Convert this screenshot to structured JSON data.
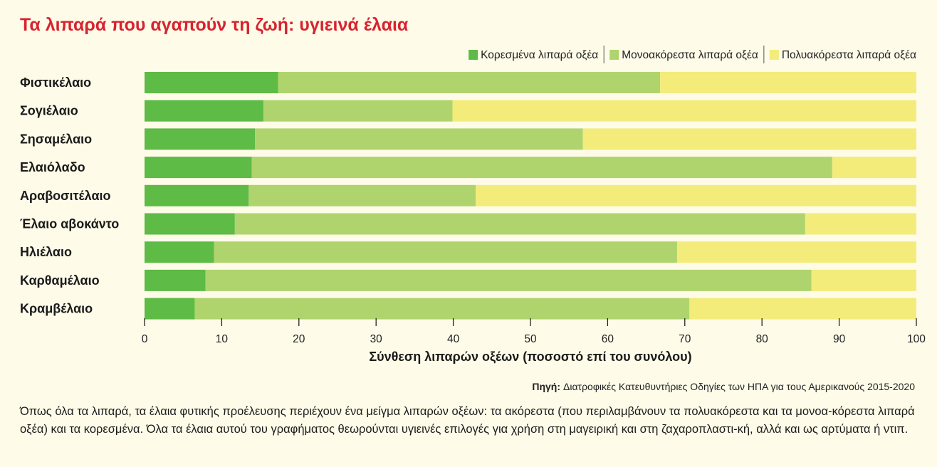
{
  "chart_data": {
    "type": "bar",
    "orientation": "horizontal",
    "stacked": true,
    "title": "Τα λιπαρά που αγαπούν τη ζωή: υγιεινά έλαια",
    "xlabel": "Σύνθεση λιπαρών οξέων (ποσοστό επί του συνόλου)",
    "ylabel": "",
    "xlim": [
      0,
      100
    ],
    "xticks": [
      0,
      10,
      20,
      30,
      40,
      50,
      60,
      70,
      80,
      90,
      100
    ],
    "grid": false,
    "legend_position": "top-right",
    "categories": [
      "Φιστικέλαιο",
      "Σογιέλαιο",
      "Σησαμέλαιο",
      "Ελαιόλαδο",
      "Αραβοσιτέλαιο",
      "Έλαιο αβοκάντο",
      "Ηλιέλαιο",
      "Καρθαμέλαιο",
      "Κραμβέλαιο"
    ],
    "series": [
      {
        "name": "Κορεσμένα λιπαρά οξέα",
        "color": "#5dbb46",
        "values": [
          17.3,
          15.4,
          14.3,
          13.9,
          13.5,
          11.7,
          9.0,
          7.9,
          6.5
        ]
      },
      {
        "name": "Μονοακόρεστα λιπαρά οξέα",
        "color": "#afd46d",
        "values": [
          49.5,
          24.5,
          42.5,
          75.2,
          29.4,
          73.9,
          60.0,
          78.5,
          64.1
        ]
      },
      {
        "name": "Πολυακόρεστα λιπαρά οξέα",
        "color": "#f3ec7a",
        "values": [
          33.2,
          60.1,
          43.2,
          10.9,
          57.1,
          14.4,
          31.0,
          13.6,
          29.4
        ]
      }
    ],
    "source_label": "Πηγή:",
    "source_text": "Διατροφικές Κατευθυντήριες Οδηγίες των ΗΠΑ για τους Αμερικανούς 2015-2020"
  },
  "note": "Όπως όλα τα λιπαρά, τα έλαια φυτικής προέλευσης περιέχουν ένα μείγμα λιπαρών οξέων: τα ακόρεστα (που περιλαμβάνουν τα πολυακόρεστα και τα μονοα-κόρεστα λιπαρά οξέα) και τα κορεσμένα. Όλα τα έλαια αυτού του γραφήματος θεωρούνται υγιεινές επιλογές για χρήση στη μαγειρική και στη ζαχαροπλαστι-κή, αλλά και ως αρτύματα ή ντιπ.",
  "colors": {
    "title": "#d7232e",
    "background": "#fffbe9"
  }
}
